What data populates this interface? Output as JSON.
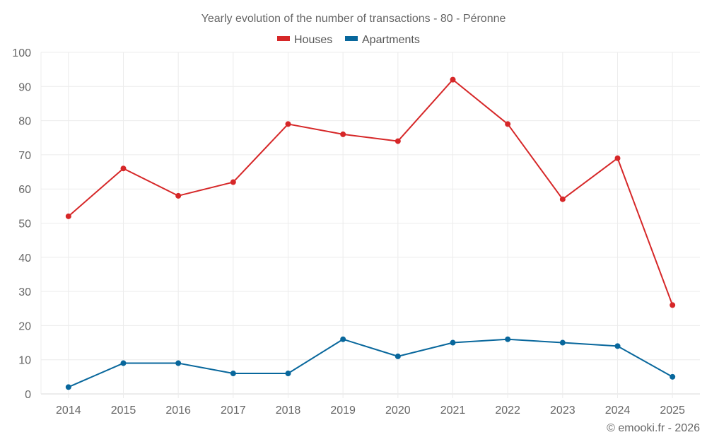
{
  "chart_data": {
    "type": "line",
    "title": "Yearly evolution of the number of transactions - 80 - Péronne",
    "xlabel": "",
    "ylabel": "",
    "categories": [
      "2014",
      "2015",
      "2016",
      "2017",
      "2018",
      "2019",
      "2020",
      "2021",
      "2022",
      "2023",
      "2024",
      "2025"
    ],
    "yticks": [
      "0",
      "10",
      "20",
      "30",
      "40",
      "50",
      "60",
      "70",
      "80",
      "90",
      "100"
    ],
    "ylim": [
      0,
      100
    ],
    "grid": true,
    "legend_position": "top-center",
    "series": [
      {
        "name": "Houses",
        "color": "#d62728",
        "values": [
          52,
          66,
          58,
          62,
          79,
          76,
          74,
          92,
          79,
          57,
          69,
          26
        ]
      },
      {
        "name": "Apartments",
        "color": "#08679c",
        "values": [
          2,
          9,
          9,
          6,
          6,
          16,
          11,
          15,
          16,
          15,
          14,
          5
        ]
      }
    ]
  },
  "footer": {
    "credit": "© emooki.fr - 2026"
  }
}
